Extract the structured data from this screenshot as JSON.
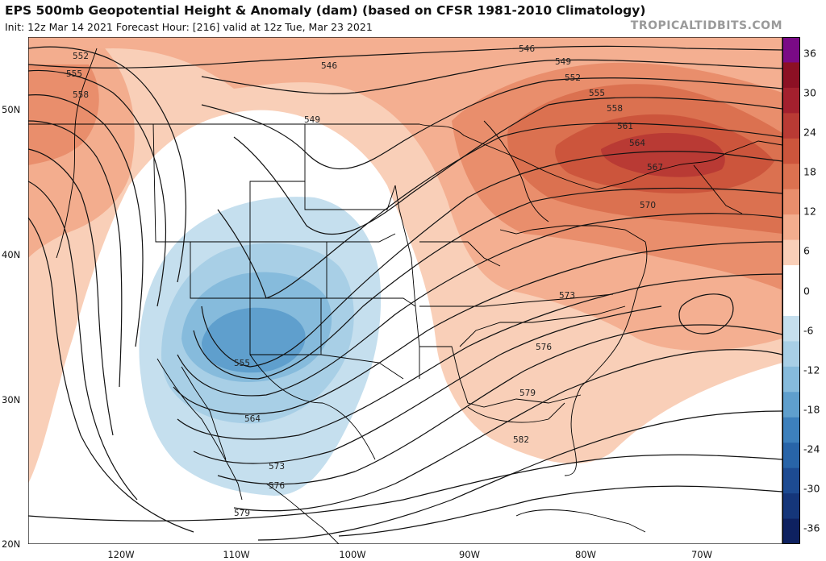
{
  "header": {
    "title": "EPS 500mb Geopotential Height & Anomaly (dam) (based on CFSR 1981-2010 Climatology)",
    "subtitle": "Init: 12z Mar 14 2021   Forecast Hour: [216]   valid at 12z Tue, Mar 23 2021",
    "brand": "TROPICALTIDBITS.COM"
  },
  "axes": {
    "lat_labels": [
      "50N",
      "40N",
      "30N",
      "20N"
    ],
    "lon_labels": [
      "120W",
      "110W",
      "100W",
      "90W",
      "80W",
      "70W"
    ]
  },
  "colorbar": {
    "labels": [
      "36",
      "30",
      "24",
      "18",
      "12",
      "6",
      "0",
      "-6",
      "-12",
      "-18",
      "-24",
      "-30",
      "-36"
    ],
    "colors": [
      "#7a0a86",
      "#8c1024",
      "#a3202e",
      "#b93a34",
      "#cc553c",
      "#db7150",
      "#e98e6c",
      "#f3ad8e",
      "#f9cfb8",
      "#ffffff",
      "#ffffff",
      "#c5dfee",
      "#a8cfe6",
      "#86bbdc",
      "#5f9fcd",
      "#3d80bc",
      "#2864a8",
      "#1d4b92",
      "#15367a",
      "#0e2160"
    ]
  },
  "contours": {
    "labels": [
      "552",
      "555",
      "558",
      "546",
      "546",
      "549",
      "552",
      "555",
      "558",
      "561",
      "564",
      "567",
      "570",
      "549",
      "555",
      "564",
      "573",
      "576",
      "573",
      "576",
      "579",
      "579",
      "582"
    ]
  }
}
